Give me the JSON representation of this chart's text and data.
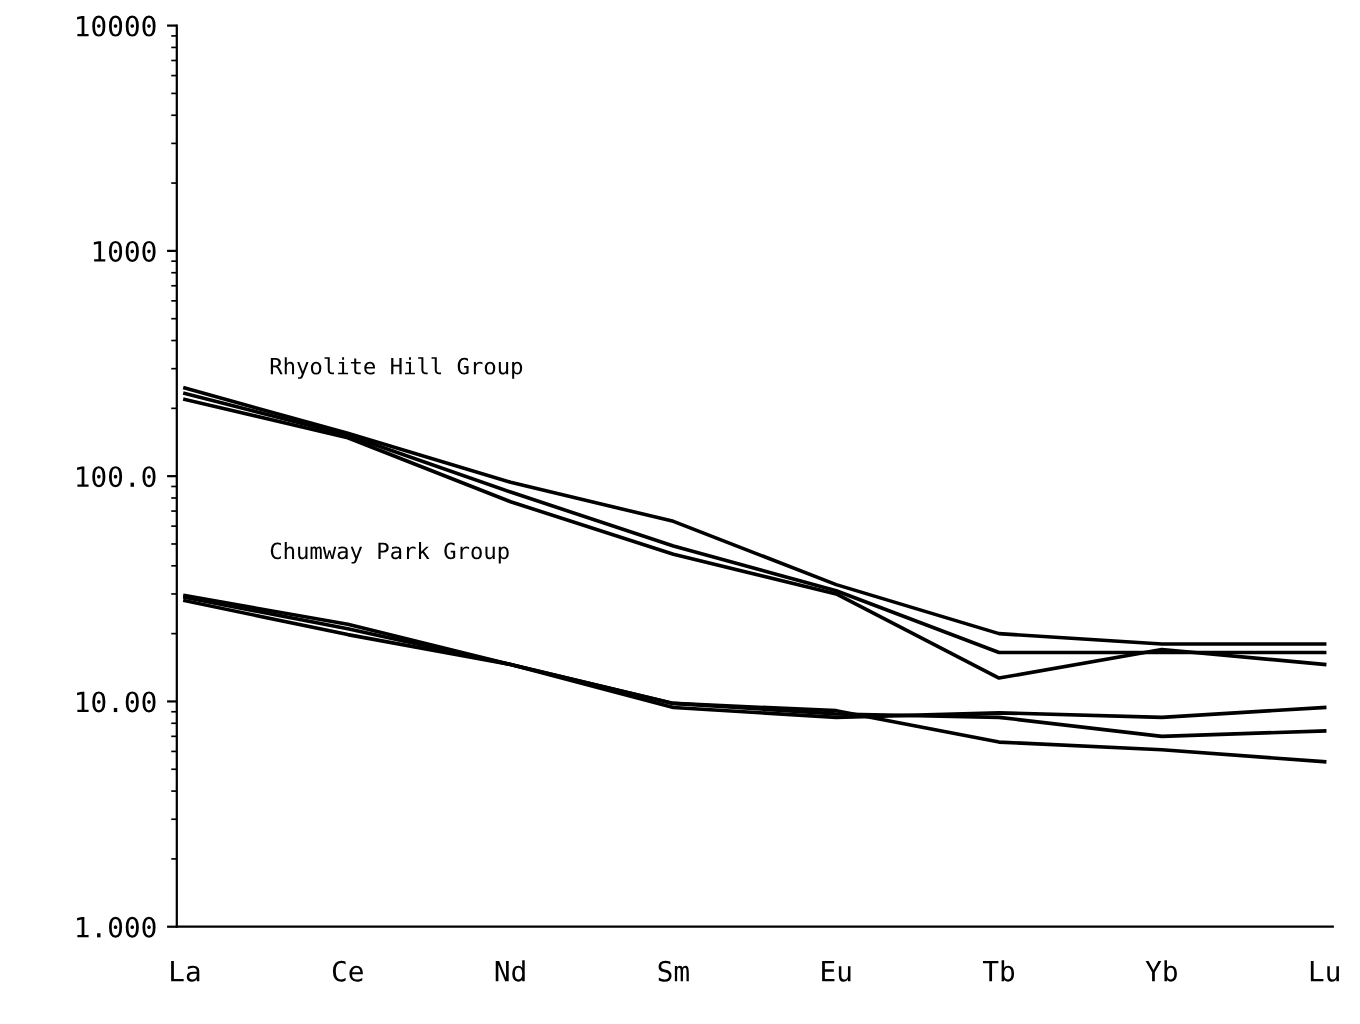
{
  "chart_data": {
    "type": "line",
    "categories": [
      "La",
      "Ce",
      "Nd",
      "Sm",
      "Eu",
      "Tb",
      "Yb",
      "Lu"
    ],
    "series": [
      {
        "color": "#000000",
        "values": [
          246,
          155,
          94,
          63,
          33,
          20,
          18,
          18
        ]
      },
      {
        "color": "#000000",
        "values": [
          219,
          148,
          77,
          45,
          30,
          12.7,
          17,
          14.6
        ]
      },
      {
        "color": "#000000",
        "values": [
          233,
          152,
          85,
          49,
          31,
          16.5,
          16.5,
          16.5
        ]
      },
      {
        "color": "#000000",
        "values": [
          29.5,
          22,
          14.6,
          9.8,
          9.1,
          6.6,
          6.1,
          5.4
        ]
      },
      {
        "color": "#000000",
        "values": [
          28,
          19.8,
          14.6,
          9.4,
          8.5,
          8.9,
          8.5,
          9.4
        ]
      },
      {
        "color": "#000000",
        "values": [
          29,
          21,
          14.6,
          9.8,
          8.8,
          8.5,
          7,
          7.4
        ]
      }
    ],
    "log": "y",
    "ylim": [
      1,
      10000
    ],
    "yticks": [
      {
        "value": 1,
        "label": "1.000"
      },
      {
        "value": 10,
        "label": "10.00"
      },
      {
        "value": 100,
        "label": "100.0"
      },
      {
        "value": 1000,
        "label": "1000"
      },
      {
        "value": 10000,
        "label": "10000"
      }
    ],
    "annotations": [
      "Rhyolite Hill Group",
      "Chumway Park Group"
    ],
    "grid": false,
    "legend": false,
    "marker": "none",
    "line_style": "solid"
  }
}
